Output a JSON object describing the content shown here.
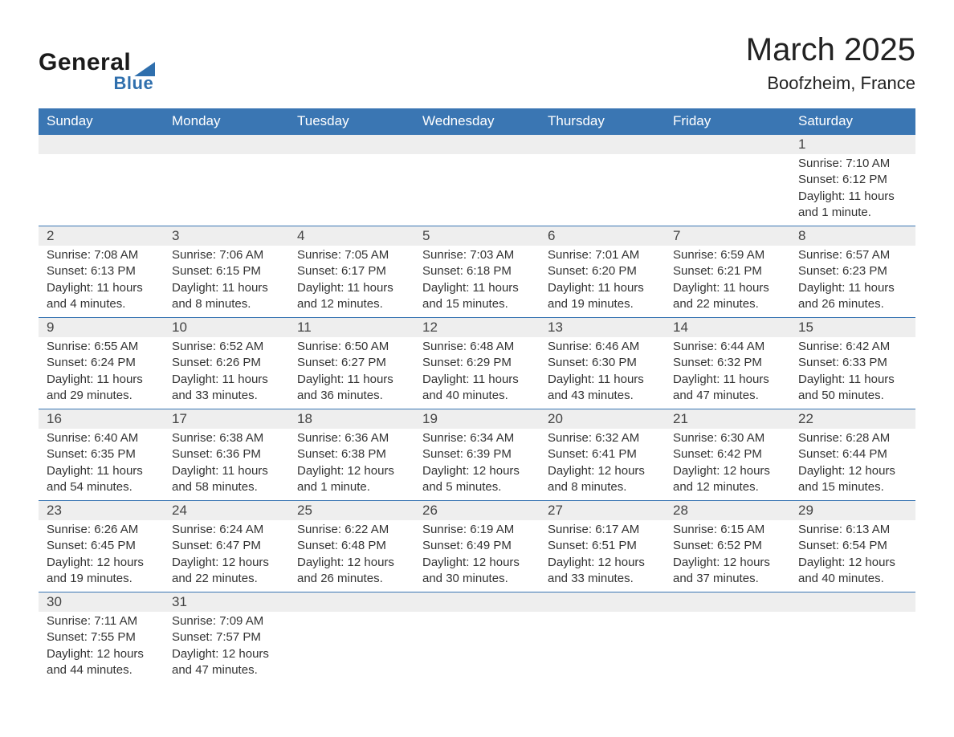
{
  "logo": {
    "line1": "General",
    "line2": "Blue"
  },
  "title": "March 2025",
  "location": "Boofzheim, France",
  "colors": {
    "header_bg": "#3a76b3",
    "header_text": "#ffffff",
    "daynum_bg": "#eeeeee",
    "row_divider": "#3a76b3",
    "text": "#333333",
    "logo_accent": "#2f6fad",
    "page_bg": "#ffffff"
  },
  "dayNames": [
    "Sunday",
    "Monday",
    "Tuesday",
    "Wednesday",
    "Thursday",
    "Friday",
    "Saturday"
  ],
  "weeks": [
    [
      null,
      null,
      null,
      null,
      null,
      null,
      {
        "n": "1",
        "sr": "Sunrise: 7:10 AM",
        "ss": "Sunset: 6:12 PM",
        "d1": "Daylight: 11 hours",
        "d2": "and 1 minute."
      }
    ],
    [
      {
        "n": "2",
        "sr": "Sunrise: 7:08 AM",
        "ss": "Sunset: 6:13 PM",
        "d1": "Daylight: 11 hours",
        "d2": "and 4 minutes."
      },
      {
        "n": "3",
        "sr": "Sunrise: 7:06 AM",
        "ss": "Sunset: 6:15 PM",
        "d1": "Daylight: 11 hours",
        "d2": "and 8 minutes."
      },
      {
        "n": "4",
        "sr": "Sunrise: 7:05 AM",
        "ss": "Sunset: 6:17 PM",
        "d1": "Daylight: 11 hours",
        "d2": "and 12 minutes."
      },
      {
        "n": "5",
        "sr": "Sunrise: 7:03 AM",
        "ss": "Sunset: 6:18 PM",
        "d1": "Daylight: 11 hours",
        "d2": "and 15 minutes."
      },
      {
        "n": "6",
        "sr": "Sunrise: 7:01 AM",
        "ss": "Sunset: 6:20 PM",
        "d1": "Daylight: 11 hours",
        "d2": "and 19 minutes."
      },
      {
        "n": "7",
        "sr": "Sunrise: 6:59 AM",
        "ss": "Sunset: 6:21 PM",
        "d1": "Daylight: 11 hours",
        "d2": "and 22 minutes."
      },
      {
        "n": "8",
        "sr": "Sunrise: 6:57 AM",
        "ss": "Sunset: 6:23 PM",
        "d1": "Daylight: 11 hours",
        "d2": "and 26 minutes."
      }
    ],
    [
      {
        "n": "9",
        "sr": "Sunrise: 6:55 AM",
        "ss": "Sunset: 6:24 PM",
        "d1": "Daylight: 11 hours",
        "d2": "and 29 minutes."
      },
      {
        "n": "10",
        "sr": "Sunrise: 6:52 AM",
        "ss": "Sunset: 6:26 PM",
        "d1": "Daylight: 11 hours",
        "d2": "and 33 minutes."
      },
      {
        "n": "11",
        "sr": "Sunrise: 6:50 AM",
        "ss": "Sunset: 6:27 PM",
        "d1": "Daylight: 11 hours",
        "d2": "and 36 minutes."
      },
      {
        "n": "12",
        "sr": "Sunrise: 6:48 AM",
        "ss": "Sunset: 6:29 PM",
        "d1": "Daylight: 11 hours",
        "d2": "and 40 minutes."
      },
      {
        "n": "13",
        "sr": "Sunrise: 6:46 AM",
        "ss": "Sunset: 6:30 PM",
        "d1": "Daylight: 11 hours",
        "d2": "and 43 minutes."
      },
      {
        "n": "14",
        "sr": "Sunrise: 6:44 AM",
        "ss": "Sunset: 6:32 PM",
        "d1": "Daylight: 11 hours",
        "d2": "and 47 minutes."
      },
      {
        "n": "15",
        "sr": "Sunrise: 6:42 AM",
        "ss": "Sunset: 6:33 PM",
        "d1": "Daylight: 11 hours",
        "d2": "and 50 minutes."
      }
    ],
    [
      {
        "n": "16",
        "sr": "Sunrise: 6:40 AM",
        "ss": "Sunset: 6:35 PM",
        "d1": "Daylight: 11 hours",
        "d2": "and 54 minutes."
      },
      {
        "n": "17",
        "sr": "Sunrise: 6:38 AM",
        "ss": "Sunset: 6:36 PM",
        "d1": "Daylight: 11 hours",
        "d2": "and 58 minutes."
      },
      {
        "n": "18",
        "sr": "Sunrise: 6:36 AM",
        "ss": "Sunset: 6:38 PM",
        "d1": "Daylight: 12 hours",
        "d2": "and 1 minute."
      },
      {
        "n": "19",
        "sr": "Sunrise: 6:34 AM",
        "ss": "Sunset: 6:39 PM",
        "d1": "Daylight: 12 hours",
        "d2": "and 5 minutes."
      },
      {
        "n": "20",
        "sr": "Sunrise: 6:32 AM",
        "ss": "Sunset: 6:41 PM",
        "d1": "Daylight: 12 hours",
        "d2": "and 8 minutes."
      },
      {
        "n": "21",
        "sr": "Sunrise: 6:30 AM",
        "ss": "Sunset: 6:42 PM",
        "d1": "Daylight: 12 hours",
        "d2": "and 12 minutes."
      },
      {
        "n": "22",
        "sr": "Sunrise: 6:28 AM",
        "ss": "Sunset: 6:44 PM",
        "d1": "Daylight: 12 hours",
        "d2": "and 15 minutes."
      }
    ],
    [
      {
        "n": "23",
        "sr": "Sunrise: 6:26 AM",
        "ss": "Sunset: 6:45 PM",
        "d1": "Daylight: 12 hours",
        "d2": "and 19 minutes."
      },
      {
        "n": "24",
        "sr": "Sunrise: 6:24 AM",
        "ss": "Sunset: 6:47 PM",
        "d1": "Daylight: 12 hours",
        "d2": "and 22 minutes."
      },
      {
        "n": "25",
        "sr": "Sunrise: 6:22 AM",
        "ss": "Sunset: 6:48 PM",
        "d1": "Daylight: 12 hours",
        "d2": "and 26 minutes."
      },
      {
        "n": "26",
        "sr": "Sunrise: 6:19 AM",
        "ss": "Sunset: 6:49 PM",
        "d1": "Daylight: 12 hours",
        "d2": "and 30 minutes."
      },
      {
        "n": "27",
        "sr": "Sunrise: 6:17 AM",
        "ss": "Sunset: 6:51 PM",
        "d1": "Daylight: 12 hours",
        "d2": "and 33 minutes."
      },
      {
        "n": "28",
        "sr": "Sunrise: 6:15 AM",
        "ss": "Sunset: 6:52 PM",
        "d1": "Daylight: 12 hours",
        "d2": "and 37 minutes."
      },
      {
        "n": "29",
        "sr": "Sunrise: 6:13 AM",
        "ss": "Sunset: 6:54 PM",
        "d1": "Daylight: 12 hours",
        "d2": "and 40 minutes."
      }
    ],
    [
      {
        "n": "30",
        "sr": "Sunrise: 7:11 AM",
        "ss": "Sunset: 7:55 PM",
        "d1": "Daylight: 12 hours",
        "d2": "and 44 minutes."
      },
      {
        "n": "31",
        "sr": "Sunrise: 7:09 AM",
        "ss": "Sunset: 7:57 PM",
        "d1": "Daylight: 12 hours",
        "d2": "and 47 minutes."
      },
      null,
      null,
      null,
      null,
      null
    ]
  ]
}
